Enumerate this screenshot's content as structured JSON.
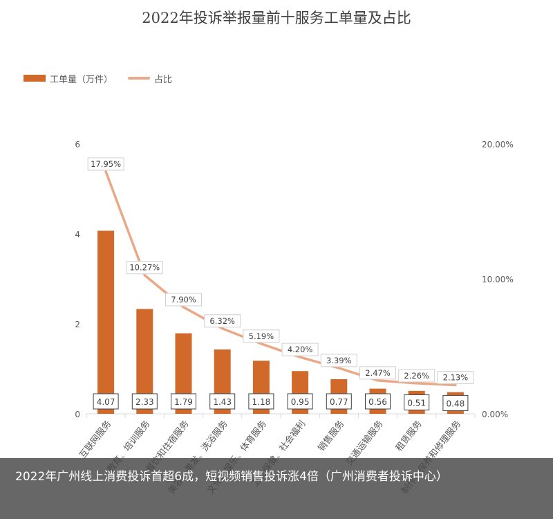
{
  "chart_data": {
    "type": "bar",
    "title": "2022年投诉举报量前十服务工单量及占比",
    "categories": [
      "互联网服务",
      "教育、培训服务",
      "餐饮和住宿服务",
      "美容、美发、洗浴服务",
      "文化、娱乐、体育服务",
      "卫生保健、社会福利",
      "销售服务",
      "交通运输服务",
      "租赁服务",
      "制作、保养和修理服务"
    ],
    "series": [
      {
        "name": "工单量（万件）",
        "type": "bar",
        "axis": "left",
        "color": "#d0692a",
        "values": [
          4.07,
          2.33,
          1.79,
          1.43,
          1.18,
          0.95,
          0.77,
          0.56,
          0.51,
          0.48
        ],
        "labels": [
          "4.07",
          "2.33",
          "1.79",
          "1.43",
          "1.18",
          "0.95",
          "0.77",
          "0.56",
          "0.51",
          "0.48"
        ]
      },
      {
        "name": "占比",
        "type": "line",
        "axis": "right",
        "color": "#eaa886",
        "values": [
          17.95,
          10.27,
          7.9,
          6.32,
          5.19,
          4.2,
          3.39,
          2.47,
          2.26,
          2.13
        ],
        "labels": [
          "17.95%",
          "10.27%",
          "7.90%",
          "6.32%",
          "5.19%",
          "4.20%",
          "3.39%",
          "2.47%",
          "2.26%",
          "2.13%"
        ]
      }
    ],
    "y_left": {
      "min": 0,
      "max": 6,
      "ticks": [
        "0",
        "2",
        "4",
        "6"
      ]
    },
    "y_right": {
      "min": 0,
      "max": 20,
      "ticks": [
        "0.00%",
        "10.00%",
        "20.00%"
      ]
    },
    "grid": false,
    "legend_position": "top-left"
  },
  "caption": "2022年广州线上消费投诉首超6成，短视频销售投诉涨4倍（广州消费者投诉中心）"
}
